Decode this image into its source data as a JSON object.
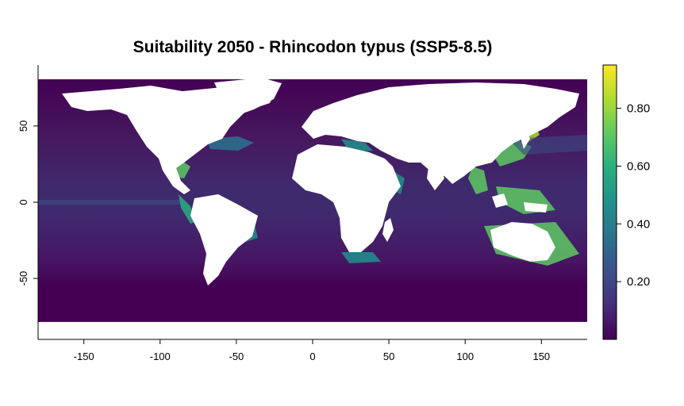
{
  "title": "Suitability 2050 - Rhincodon typus (SSP5-8.5)",
  "map": {
    "x_ticks": [
      {
        "value": -150,
        "label": "-150"
      },
      {
        "value": -100,
        "label": "-100"
      },
      {
        "value": -50,
        "label": "-50"
      },
      {
        "value": 0,
        "label": "0"
      },
      {
        "value": 50,
        "label": "50"
      },
      {
        "value": 100,
        "label": "100"
      },
      {
        "value": 150,
        "label": "150"
      }
    ],
    "y_ticks": [
      {
        "value": 50,
        "label": "50"
      },
      {
        "value": 0,
        "label": "0"
      },
      {
        "value": -50,
        "label": "-50"
      }
    ],
    "xlim": [
      -180,
      180
    ],
    "ylim": [
      -90,
      90
    ],
    "land_color": "#ffffff",
    "ocean_base_color": "#440154"
  },
  "legend": {
    "ticks": [
      {
        "value": 0.2,
        "label": "0.20"
      },
      {
        "value": 0.4,
        "label": "0.40"
      },
      {
        "value": 0.6,
        "label": "0.60"
      },
      {
        "value": 0.8,
        "label": "0.80"
      }
    ],
    "range": [
      0.0,
      0.95
    ],
    "colormap": [
      "#440154",
      "#472d7b",
      "#3b528b",
      "#2c728e",
      "#21918c",
      "#28ae80",
      "#5ec962",
      "#addc30",
      "#fde725"
    ]
  }
}
